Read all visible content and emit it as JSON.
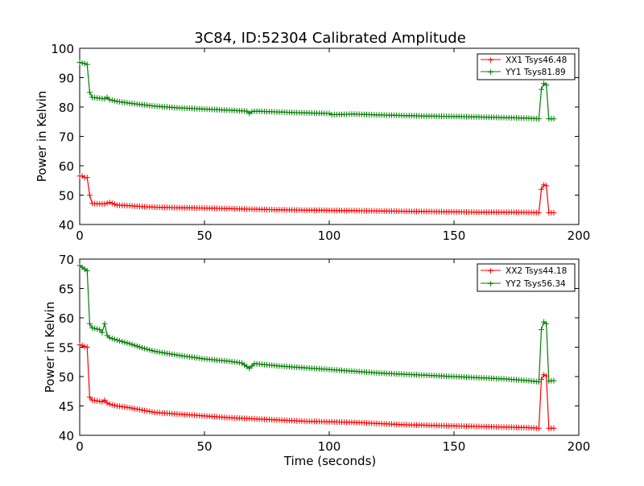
{
  "chart_data": [
    {
      "type": "line",
      "title": "3C84, ID:52304 Calibrated Amplitude",
      "xlabel": "",
      "ylabel": "Power in Kelvin",
      "xlim": [
        0,
        200
      ],
      "ylim": [
        40,
        100
      ],
      "xticks": [
        "0",
        "50",
        "100",
        "150",
        "200"
      ],
      "yticks": [
        "40",
        "50",
        "60",
        "70",
        "80",
        "90",
        "100"
      ],
      "legend_position": "top-right",
      "grid": false,
      "series": [
        {
          "name": "XX1 Tsys46.48",
          "color": "#ff0000",
          "x": [
            0,
            1,
            2,
            3,
            4,
            5,
            8,
            10,
            12,
            15,
            20,
            25,
            30,
            40,
            50,
            60,
            68,
            70,
            80,
            90,
            100,
            110,
            120,
            130,
            140,
            150,
            160,
            170,
            180,
            184,
            185,
            186,
            187,
            188,
            189,
            190
          ],
          "y": [
            56.5,
            56.5,
            56.0,
            56.0,
            50.0,
            47.2,
            47.0,
            47.0,
            47.5,
            46.6,
            46.4,
            46.1,
            45.9,
            45.7,
            45.6,
            45.4,
            45.2,
            45.2,
            45.0,
            44.9,
            44.8,
            44.7,
            44.6,
            44.5,
            44.4,
            44.3,
            44.2,
            44.2,
            44.1,
            44.0,
            52.0,
            53.5,
            53.2,
            44.0,
            44.0,
            44.0
          ]
        },
        {
          "name": "YY1 Tsys81.89",
          "color": "#008000",
          "x": [
            0,
            1,
            2,
            3,
            4,
            5,
            8,
            10,
            11,
            12,
            15,
            20,
            25,
            30,
            40,
            50,
            60,
            67,
            68,
            69,
            70,
            80,
            90,
            100,
            101,
            110,
            120,
            130,
            140,
            150,
            160,
            170,
            180,
            184,
            185,
            186,
            187,
            188,
            189,
            190
          ],
          "y": [
            95.2,
            95.0,
            94.8,
            94.5,
            85.0,
            83.3,
            83.0,
            82.8,
            83.3,
            82.5,
            81.9,
            81.3,
            80.8,
            80.3,
            79.7,
            79.3,
            78.9,
            78.6,
            77.8,
            78.4,
            78.6,
            78.3,
            78.0,
            77.8,
            77.4,
            77.6,
            77.3,
            77.1,
            76.9,
            76.8,
            76.6,
            76.4,
            76.2,
            76.0,
            86.0,
            88.0,
            87.5,
            76.0,
            76.0,
            76.0
          ]
        }
      ]
    },
    {
      "type": "line",
      "title": "",
      "xlabel": "Time (seconds)",
      "ylabel": "Power in Kelvin",
      "xlim": [
        0,
        200
      ],
      "ylim": [
        40,
        70
      ],
      "xticks": [
        "0",
        "50",
        "100",
        "150",
        "200"
      ],
      "yticks": [
        "40",
        "45",
        "50",
        "55",
        "60",
        "65",
        "70"
      ],
      "legend_position": "top-right",
      "grid": false,
      "series": [
        {
          "name": "XX2 Tsys44.18",
          "color": "#ff0000",
          "x": [
            0,
            1,
            2,
            3,
            4,
            5,
            8,
            9,
            10,
            11,
            12,
            15,
            20,
            25,
            30,
            40,
            50,
            60,
            70,
            80,
            90,
            100,
            110,
            120,
            130,
            140,
            150,
            160,
            170,
            180,
            184,
            185,
            186,
            187,
            188,
            189,
            190
          ],
          "y": [
            55.4,
            55.3,
            55.1,
            55.0,
            46.5,
            46.0,
            45.8,
            45.7,
            46.0,
            45.5,
            45.3,
            45.0,
            44.7,
            44.3,
            43.9,
            43.6,
            43.3,
            43.0,
            42.8,
            42.6,
            42.4,
            42.3,
            42.2,
            42.0,
            41.8,
            41.7,
            41.6,
            41.5,
            41.4,
            41.3,
            41.2,
            49.5,
            50.3,
            50.1,
            41.2,
            41.2,
            41.2
          ]
        },
        {
          "name": "YY2 Tsys56.34",
          "color": "#008000",
          "x": [
            0,
            1,
            2,
            3,
            4,
            5,
            8,
            9,
            10,
            11,
            12,
            15,
            20,
            25,
            30,
            40,
            50,
            60,
            65,
            68,
            70,
            75,
            80,
            90,
            100,
            110,
            120,
            130,
            140,
            150,
            160,
            170,
            180,
            184,
            185,
            186,
            187,
            188,
            189,
            190
          ],
          "y": [
            68.9,
            68.6,
            68.3,
            68.0,
            59.0,
            58.3,
            58.0,
            57.5,
            59.0,
            57.0,
            56.6,
            56.2,
            55.6,
            54.9,
            54.3,
            53.6,
            53.0,
            52.6,
            52.3,
            51.4,
            52.2,
            52.0,
            51.8,
            51.5,
            51.2,
            50.9,
            50.6,
            50.4,
            50.2,
            50.0,
            49.8,
            49.6,
            49.3,
            49.1,
            58.0,
            59.3,
            59.0,
            49.2,
            49.3,
            49.3
          ]
        }
      ]
    }
  ]
}
